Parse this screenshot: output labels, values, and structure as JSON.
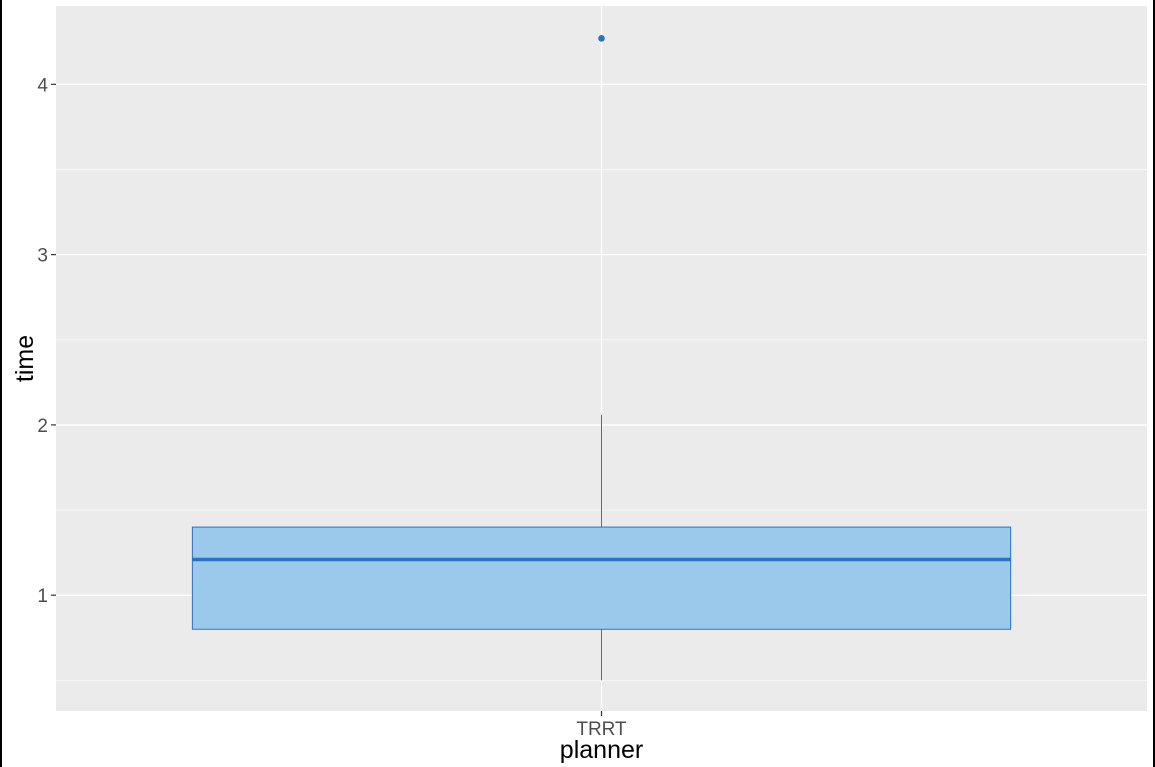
{
  "chart_data": {
    "type": "boxplot",
    "title": "",
    "xlabel": "planner",
    "ylabel": "time",
    "categories": [
      "TRRT"
    ],
    "ylim": [
      0.32,
      4.46
    ],
    "y_ticks": [
      1,
      2,
      3,
      4
    ],
    "grid": true,
    "series": [
      {
        "name": "TRRT",
        "whisker_low": 0.5,
        "q1": 0.8,
        "median": 1.21,
        "q3": 1.4,
        "whisker_high": 2.06,
        "outliers": [
          4.27
        ]
      }
    ],
    "colors": {
      "panel": "#ebebeb",
      "grid_major": "#ffffff",
      "grid_minor": "#f7f7f7",
      "box_fill": "#9ac9eb",
      "box_stroke": "#2f71c0",
      "median": "#2f71c0",
      "outlier": "#2f71c0"
    }
  }
}
